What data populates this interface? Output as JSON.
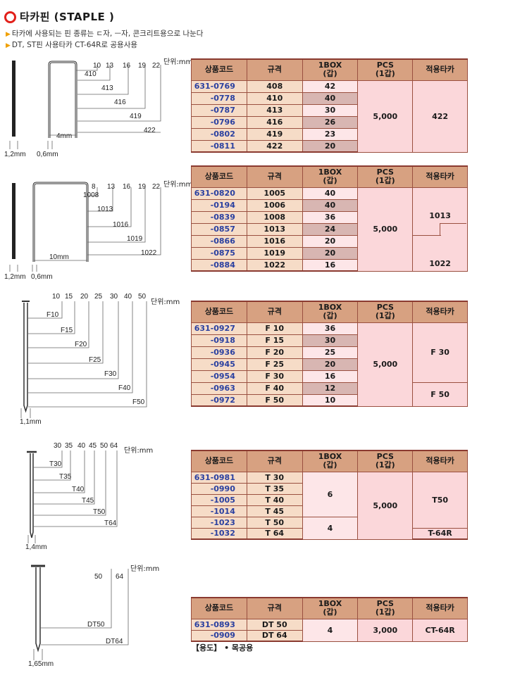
{
  "header": {
    "title": "타카핀 (STAPLE )",
    "note1": "타카에 사용되는 핀 종류는 ㄷ자, ㅡ자, 콘크리트용으로 나눈다",
    "note2": "DT, ST핀 사용타카 CT-64R로 공용사용"
  },
  "columns": [
    "상품코드",
    "규격",
    "1BOX\n(갑)",
    "PCS\n(1갑)",
    "적용타카"
  ],
  "col_box": [
    "1BOX",
    "(갑)"
  ],
  "col_pcs": [
    "PCS",
    "(1갑)"
  ],
  "unit_label": "단위:mm",
  "tables": [
    {
      "rows": [
        {
          "code": "631-0769",
          "spec": "408",
          "box": "42"
        },
        {
          "code": "-0778",
          "spec": "410",
          "box": "40"
        },
        {
          "code": "-0787",
          "spec": "413",
          "box": "30"
        },
        {
          "code": "-0796",
          "spec": "416",
          "box": "26"
        },
        {
          "code": "-0802",
          "spec": "419",
          "box": "23"
        },
        {
          "code": "-0811",
          "spec": "422",
          "box": "20"
        }
      ],
      "pcs": "5,000",
      "tacker": [
        "422"
      ]
    },
    {
      "rows": [
        {
          "code": "631-0820",
          "spec": "1005",
          "box": "40"
        },
        {
          "code": "-0194",
          "spec": "1006",
          "box": "40"
        },
        {
          "code": "-0839",
          "spec": "1008",
          "box": "36"
        },
        {
          "code": "-0857",
          "spec": "1013",
          "box": "24"
        },
        {
          "code": "-0866",
          "spec": "1016",
          "box": "20"
        },
        {
          "code": "-0875",
          "spec": "1019",
          "box": "20"
        },
        {
          "code": "-0884",
          "spec": "1022",
          "box": "16"
        }
      ],
      "pcs": "5,000",
      "tacker": [
        "1013",
        "1022"
      ]
    },
    {
      "rows": [
        {
          "code": "631-0927",
          "spec": "F 10",
          "box": "36"
        },
        {
          "code": "-0918",
          "spec": "F 15",
          "box": "30"
        },
        {
          "code": "-0936",
          "spec": "F 20",
          "box": "25"
        },
        {
          "code": "-0945",
          "spec": "F 25",
          "box": "20"
        },
        {
          "code": "-0954",
          "spec": "F 30",
          "box": "16"
        },
        {
          "code": "-0963",
          "spec": "F 40",
          "box": "12"
        },
        {
          "code": "-0972",
          "spec": "F 50",
          "box": "10"
        }
      ],
      "pcs": "5,000",
      "tacker": [
        "F 30",
        "F 50"
      ]
    },
    {
      "rows": [
        {
          "code": "631-0981",
          "spec": "T 30"
        },
        {
          "code": "-0990",
          "spec": "T 35"
        },
        {
          "code": "-1005",
          "spec": "T 40"
        },
        {
          "code": "-1014",
          "spec": "T 45"
        },
        {
          "code": "-1023",
          "spec": "T 50"
        },
        {
          "code": "-1032",
          "spec": "T 64"
        }
      ],
      "box_groups": [
        "6",
        "4"
      ],
      "pcs": "5,000",
      "tacker": [
        "T50",
        "T-64R"
      ]
    },
    {
      "rows": [
        {
          "code": "631-0893",
          "spec": "DT 50"
        },
        {
          "code": "-0909",
          "spec": "DT 64"
        }
      ],
      "box": "4",
      "pcs": "3,000",
      "tacker": [
        "CT-64R"
      ]
    }
  ],
  "usage": "【용도】 • 목공용",
  "diagrams": {
    "d1": {
      "ticks": [
        "10",
        "13",
        "16",
        "19",
        "22"
      ],
      "sizes": [
        "410",
        "413",
        "416",
        "419",
        "422"
      ],
      "width": "4mm",
      "thick": "1,2mm",
      "wire": "0,6mm"
    },
    "d2": {
      "ticks": [
        "8",
        "13",
        "16",
        "19",
        "22"
      ],
      "sizes": [
        "1008",
        "1013",
        "1016",
        "1019",
        "1022"
      ],
      "width": "10mm",
      "thick": "1,2mm",
      "wire": "0,6mm"
    },
    "d3": {
      "ticks": [
        "10",
        "15",
        "20",
        "25",
        "30",
        "40",
        "50"
      ],
      "sizes": [
        "F10",
        "F15",
        "F20",
        "F25",
        "F30",
        "F40",
        "F50"
      ],
      "thick": "1,1mm"
    },
    "d4": {
      "ticks": [
        "30",
        "35",
        "40",
        "45",
        "50",
        "64"
      ],
      "sizes": [
        "T30",
        "T35",
        "T40",
        "T45",
        "T50",
        "T64"
      ],
      "thick": "1,4mm"
    },
    "d5": {
      "ticks": [
        "50",
        "64"
      ],
      "sizes": [
        "DT50",
        "DT64"
      ],
      "thick": "1,65mm"
    }
  },
  "colors": {
    "header": "#d7a181",
    "code_bg": "#f6dcc7",
    "pink": "#fbd7da",
    "code_text": "#2a40a0",
    "ring": "#e2201a"
  }
}
